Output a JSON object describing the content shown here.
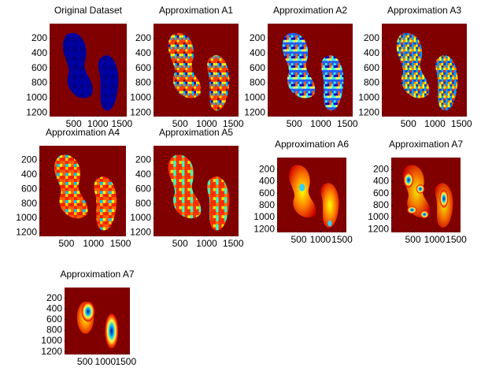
{
  "chart_data": [
    {
      "type": "image",
      "title": "Original Dataset",
      "xlim": [
        0,
        1600
      ],
      "ylim": [
        0,
        1250
      ],
      "y_reversed": true,
      "xticks": [
        500,
        1000,
        1500
      ],
      "yticks": [
        200,
        400,
        600,
        800,
        1000,
        1200
      ]
    },
    {
      "type": "image",
      "title": "Approximation A1",
      "xlim": [
        0,
        1600
      ],
      "ylim": [
        0,
        1250
      ],
      "y_reversed": true,
      "xticks": [
        500,
        1000,
        1500
      ],
      "yticks": [
        200,
        400,
        600,
        800,
        1000,
        1200
      ]
    },
    {
      "type": "image",
      "title": "Approximation A2",
      "xlim": [
        0,
        1600
      ],
      "ylim": [
        0,
        1250
      ],
      "y_reversed": true,
      "xticks": [
        500,
        1000,
        1500
      ],
      "yticks": [
        200,
        400,
        600,
        800,
        1000,
        1200
      ]
    },
    {
      "type": "image",
      "title": "Approximation A3",
      "xlim": [
        0,
        1600
      ],
      "ylim": [
        0,
        1250
      ],
      "y_reversed": true,
      "xticks": [
        500,
        1000,
        1500
      ],
      "yticks": [
        200,
        400,
        600,
        800,
        1000,
        1200
      ]
    },
    {
      "type": "image",
      "title": "Approximation A4",
      "xlim": [
        0,
        1600
      ],
      "ylim": [
        0,
        1250
      ],
      "y_reversed": true,
      "xticks": [
        500,
        1000,
        1500
      ],
      "yticks": [
        200,
        400,
        600,
        800,
        1000,
        1200
      ]
    },
    {
      "type": "image",
      "title": "Approximation A5",
      "xlim": [
        0,
        1600
      ],
      "ylim": [
        0,
        1250
      ],
      "y_reversed": true,
      "xticks": [
        500,
        1000,
        1500
      ],
      "yticks": [
        200,
        400,
        600,
        800,
        1000,
        1200
      ]
    },
    {
      "type": "image",
      "title": "Approximation A6",
      "xlim": [
        0,
        1600
      ],
      "ylim": [
        0,
        1250
      ],
      "y_reversed": true,
      "xticks": [
        500,
        1000,
        1500
      ],
      "yticks": [
        200,
        400,
        600,
        800,
        1000,
        1200
      ]
    },
    {
      "type": "image",
      "title": "Approximation A7",
      "xlim": [
        0,
        1600
      ],
      "ylim": [
        0,
        1250
      ],
      "y_reversed": true,
      "xticks": [
        500,
        1000,
        1500
      ],
      "yticks": [
        200,
        400,
        600,
        800,
        1000,
        1200
      ]
    },
    {
      "type": "image",
      "title": "Approximation A7",
      "xlim": [
        0,
        1600
      ],
      "ylim": [
        0,
        1250
      ],
      "y_reversed": true,
      "xticks": [
        500,
        1000,
        1500
      ],
      "yticks": [
        200,
        400,
        600,
        800,
        1000,
        1200
      ]
    }
  ]
}
